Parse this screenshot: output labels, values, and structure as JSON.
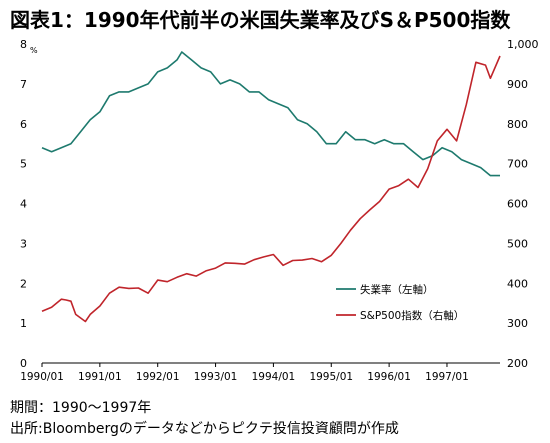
{
  "title": "図表1：1990年代前半の米国失業率及びS＆P500指数",
  "notes": {
    "period": "期間：1990〜1997年",
    "source": "出所:Bloombergのデータなどからピクテ投信投資顧問が作成"
  },
  "chart_data": {
    "type": "line",
    "title": "図表1：1990年代前半の米国失業率及びS＆P500指数",
    "x_ticks": [
      "1990/01",
      "1991/01",
      "1992/01",
      "1993/01",
      "1994/01",
      "1995/01",
      "1996/01",
      "1997/01"
    ],
    "x_range": [
      "1990-01",
      "1997-12"
    ],
    "y_left": {
      "unit": "%",
      "range": [
        0,
        8
      ],
      "ticks": [
        "0",
        "1",
        "2",
        "3",
        "4",
        "5",
        "6",
        "7",
        "8"
      ]
    },
    "y_right": {
      "range": [
        200,
        1000
      ],
      "ticks": [
        "200",
        "300",
        "400",
        "500",
        "600",
        "700",
        "800",
        "900",
        "1,000"
      ]
    },
    "legend_position": "right-middle",
    "grid": false,
    "series": [
      {
        "name": "失業率（左軸）",
        "axis": "left",
        "color": "#1e7a6e",
        "x": [
          "1990-01",
          "1990-03",
          "1990-05",
          "1990-07",
          "1990-09",
          "1990-11",
          "1991-01",
          "1991-03",
          "1991-05",
          "1991-07",
          "1991-09",
          "1991-11",
          "1992-01",
          "1992-03",
          "1992-05",
          "1992-06",
          "1992-08",
          "1992-10",
          "1992-12",
          "1993-02",
          "1993-04",
          "1993-06",
          "1993-08",
          "1993-10",
          "1993-12",
          "1994-02",
          "1994-04",
          "1994-06",
          "1994-08",
          "1994-10",
          "1994-12",
          "1995-02",
          "1995-04",
          "1995-06",
          "1995-08",
          "1995-10",
          "1995-12",
          "1996-02",
          "1996-04",
          "1996-06",
          "1996-08",
          "1996-10",
          "1996-12",
          "1997-02",
          "1997-04",
          "1997-06",
          "1997-08",
          "1997-10",
          "1997-12"
        ],
        "values": [
          5.4,
          5.3,
          5.4,
          5.5,
          5.8,
          6.1,
          6.3,
          6.7,
          6.8,
          6.8,
          6.9,
          7.0,
          7.3,
          7.4,
          7.6,
          7.8,
          7.6,
          7.4,
          7.3,
          7.0,
          7.1,
          7.0,
          6.8,
          6.8,
          6.6,
          6.5,
          6.4,
          6.1,
          6.0,
          5.8,
          5.5,
          5.5,
          5.8,
          5.6,
          5.6,
          5.5,
          5.6,
          5.5,
          5.5,
          5.3,
          5.1,
          5.2,
          5.4,
          5.3,
          5.1,
          5.0,
          4.9,
          4.7,
          4.7
        ]
      },
      {
        "name": "S&P500指数（右軸）",
        "axis": "right",
        "color": "#c0252b",
        "x": [
          "1990-01",
          "1990-03",
          "1990-05",
          "1990-06",
          "1990-07",
          "1990-08",
          "1990-10",
          "1990-11",
          "1991-01",
          "1991-03",
          "1991-05",
          "1991-07",
          "1991-09",
          "1991-11",
          "1992-01",
          "1992-03",
          "1992-05",
          "1992-07",
          "1992-09",
          "1992-11",
          "1993-01",
          "1993-03",
          "1993-05",
          "1993-07",
          "1993-09",
          "1993-11",
          "1994-01",
          "1994-03",
          "1994-05",
          "1994-07",
          "1994-09",
          "1994-11",
          "1995-01",
          "1995-03",
          "1995-05",
          "1995-07",
          "1995-09",
          "1995-11",
          "1996-01",
          "1996-03",
          "1996-05",
          "1996-07",
          "1996-09",
          "1996-11",
          "1997-01",
          "1997-03",
          "1997-05",
          "1997-07",
          "1997-09",
          "1997-10",
          "1997-12"
        ],
        "values": [
          330,
          340,
          360,
          358,
          355,
          322,
          304,
          322,
          343,
          375,
          390,
          387,
          388,
          375,
          408,
          404,
          415,
          424,
          418,
          431,
          438,
          451,
          450,
          448,
          459,
          466,
          472,
          445,
          457,
          458,
          462,
          454,
          470,
          500,
          533,
          562,
          584,
          605,
          636,
          645,
          661,
          640,
          687,
          757,
          786,
          757,
          848,
          954,
          947,
          914,
          970
        ]
      }
    ]
  }
}
